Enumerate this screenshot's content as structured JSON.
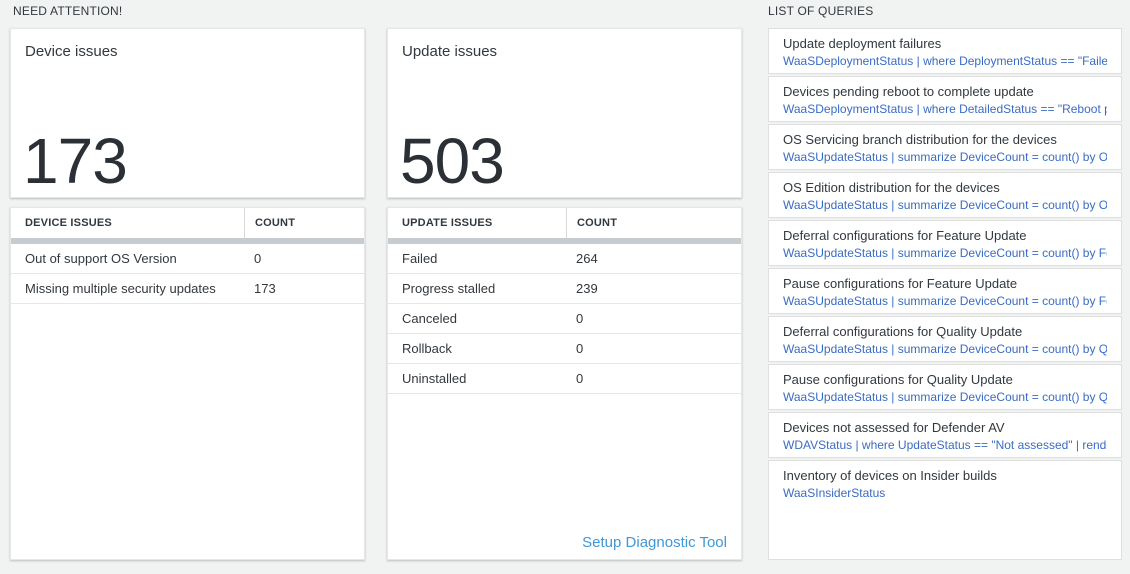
{
  "page": {
    "need_attention_title": "NEED ATTENTION!",
    "queries_title": "LIST OF QUERIES"
  },
  "device_issues": {
    "card_title": "Device issues",
    "total": "173",
    "table": {
      "col_issue": "DEVICE ISSUES",
      "col_count": "COUNT",
      "rows": [
        {
          "label": "Out of support OS Version",
          "count": "0"
        },
        {
          "label": "Missing multiple security updates",
          "count": "173"
        }
      ]
    }
  },
  "update_issues": {
    "card_title": "Update issues",
    "total": "503",
    "table": {
      "col_issue": "UPDATE ISSUES",
      "col_count": "COUNT",
      "rows": [
        {
          "label": "Failed",
          "count": "264"
        },
        {
          "label": "Progress stalled",
          "count": "239"
        },
        {
          "label": "Canceled",
          "count": "0"
        },
        {
          "label": "Rollback",
          "count": "0"
        },
        {
          "label": "Uninstalled",
          "count": "0"
        }
      ]
    },
    "diagnostic_link": "Setup Diagnostic Tool"
  },
  "query_list": {
    "items": [
      {
        "title": "Update deployment failures",
        "query": "WaaSDeploymentStatus | where DeploymentStatus == \"Failed\" |..."
      },
      {
        "title": "Devices pending reboot to complete update",
        "query": "WaaSDeploymentStatus | where DetailedStatus == \"Reboot pend..."
      },
      {
        "title": "OS Servicing branch distribution for the devices",
        "query": "WaaSUpdateStatus | summarize DeviceCount = count() by OSSer..."
      },
      {
        "title": "OS Edition distribution for the devices",
        "query": "WaaSUpdateStatus | summarize DeviceCount = count() by OSEdit..."
      },
      {
        "title": "Deferral configurations for Feature Update",
        "query": "WaaSUpdateStatus | summarize DeviceCount = count() by Featur..."
      },
      {
        "title": "Pause configurations for Feature Update",
        "query": "WaaSUpdateStatus | summarize DeviceCount = count() by Featur..."
      },
      {
        "title": "Deferral configurations for Quality Update",
        "query": "WaaSUpdateStatus | summarize DeviceCount = count() by Qualit..."
      },
      {
        "title": "Pause configurations for Quality Update",
        "query": "WaaSUpdateStatus | summarize DeviceCount = count() by Qualit..."
      },
      {
        "title": "Devices not assessed for Defender AV",
        "query": "WDAVStatus | where UpdateStatus == \"Not assessed\" | render ta..."
      },
      {
        "title": "Inventory of devices on Insider builds",
        "query": "WaaSInsiderStatus"
      }
    ]
  },
  "colors": {
    "background": "#f1f2f2",
    "card_background": "#ffffff",
    "text_primary": "#32383d",
    "big_number": "#2b3036",
    "query_text_blue": "#3a6cc3",
    "link_blue": "#3f98d6",
    "table_header_bar": "#c7ccd1"
  }
}
